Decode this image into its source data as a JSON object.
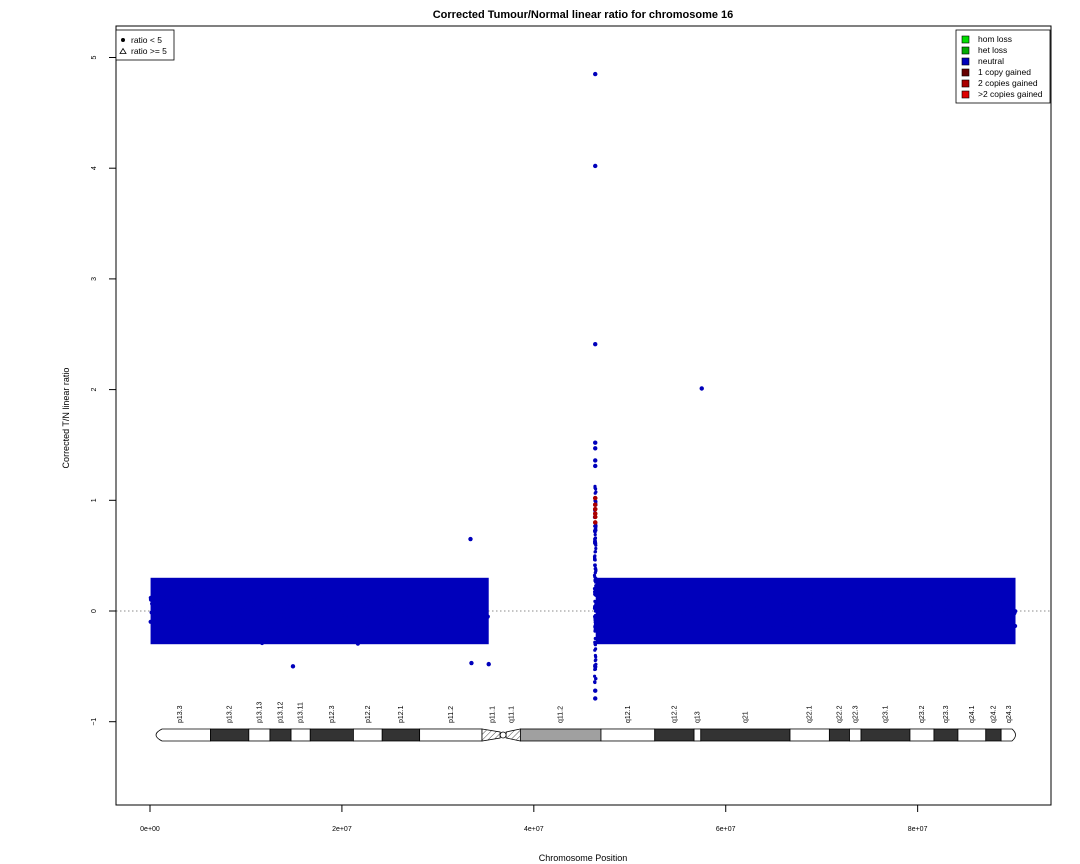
{
  "chart_data": {
    "type": "scatter",
    "title": "Corrected Tumour/Normal linear ratio for chromosome  16",
    "xlabel": "Chromosome Position",
    "ylabel": "Corrected T/N linear ratio",
    "xlim": [
      0,
      90354753
    ],
    "ylim": [
      -1.8,
      5.25
    ],
    "x_ticks": [
      {
        "value": 0,
        "label": "0e+00"
      },
      {
        "value": 20000000,
        "label": "2e+07"
      },
      {
        "value": 40000000,
        "label": "4e+07"
      },
      {
        "value": 60000000,
        "label": "6e+07"
      },
      {
        "value": 80000000,
        "label": "8e+07"
      }
    ],
    "y_ticks": [
      {
        "value": -1,
        "label": "−1"
      },
      {
        "value": 0,
        "label": "0"
      },
      {
        "value": 1,
        "label": "1"
      },
      {
        "value": 2,
        "label": "2"
      },
      {
        "value": 3,
        "label": "3"
      },
      {
        "value": 4,
        "label": "4"
      },
      {
        "value": 5,
        "label": "5"
      }
    ],
    "reference_line": {
      "y": 0,
      "style": "dotted",
      "color": "#666666"
    },
    "series": [
      {
        "name": "neutral",
        "color": "#0000bb",
        "clusters": [
          {
            "x_start": 60000,
            "x_end": 35300000,
            "y_center": 0.0,
            "y_low": -0.45,
            "y_high": 0.58
          },
          {
            "x_start": 46450000,
            "x_end": 90200000,
            "y_center": 0.0,
            "y_low": -0.45,
            "y_high": 0.58
          }
        ],
        "outliers": [
          {
            "x": 46400000,
            "y": 4.85
          },
          {
            "x": 46400000,
            "y": 4.02
          },
          {
            "x": 46400000,
            "y": 2.41
          },
          {
            "x": 57500000,
            "y": 2.01
          },
          {
            "x": 46400000,
            "y": 1.52
          },
          {
            "x": 46400000,
            "y": 1.47
          },
          {
            "x": 46400000,
            "y": 1.36
          },
          {
            "x": 46400000,
            "y": 1.31
          },
          {
            "x": 46400000,
            "y": -0.79
          },
          {
            "x": 46400000,
            "y": -0.72
          },
          {
            "x": 33400000,
            "y": 0.65
          },
          {
            "x": 14900000,
            "y": -0.5
          },
          {
            "x": 35300000,
            "y": -0.48
          },
          {
            "x": 33500000,
            "y": -0.47
          }
        ]
      },
      {
        "name": "2 copies gained",
        "color": "#aa0000",
        "points": [
          {
            "x": 46400000,
            "y": 1.02
          },
          {
            "x": 46400000,
            "y": 0.96
          },
          {
            "x": 46400000,
            "y": 0.92
          },
          {
            "x": 46400000,
            "y": 0.88
          },
          {
            "x": 46400000,
            "y": 0.85
          },
          {
            "x": 46400000,
            "y": 0.8
          }
        ]
      }
    ],
    "legend_shape": {
      "position": "top-left",
      "entries": [
        {
          "label": "ratio < 5",
          "symbol": "filled-circle"
        },
        {
          "label": "ratio >= 5",
          "symbol": "open-triangle"
        }
      ]
    },
    "legend_color": {
      "position": "top-right",
      "entries": [
        {
          "label": "hom loss",
          "color": "#00dd00"
        },
        {
          "label": "het loss",
          "color": "#00aa00"
        },
        {
          "label": "neutral",
          "color": "#0000bb"
        },
        {
          "label": "1 copy gained",
          "color": "#660000"
        },
        {
          "label": "2 copies gained",
          "color": "#aa0000"
        },
        {
          "label": ">2 copies gained",
          "color": "#dd0000"
        }
      ]
    },
    "ideogram": {
      "y_value": -1.12,
      "centromere_x": 36800000,
      "bands": [
        {
          "name": "p13.3",
          "start": 0,
          "end": 6300000,
          "stain": "gneg"
        },
        {
          "name": "p13.2",
          "start": 6300000,
          "end": 10300000,
          "stain": "gpos50"
        },
        {
          "name": "p13.13",
          "start": 10300000,
          "end": 12500000,
          "stain": "gneg"
        },
        {
          "name": "p13.12",
          "start": 12500000,
          "end": 14700000,
          "stain": "gpos50"
        },
        {
          "name": "p13.11",
          "start": 14700000,
          "end": 16700000,
          "stain": "gneg"
        },
        {
          "name": "p12.3",
          "start": 16700000,
          "end": 21200000,
          "stain": "gpos50"
        },
        {
          "name": "p12.2",
          "start": 21200000,
          "end": 24200000,
          "stain": "gneg"
        },
        {
          "name": "p12.1",
          "start": 24200000,
          "end": 28100000,
          "stain": "gpos50"
        },
        {
          "name": "p11.2",
          "start": 28100000,
          "end": 34600000,
          "stain": "gneg"
        },
        {
          "name": "p11.1",
          "start": 34600000,
          "end": 36800000,
          "stain": "acen"
        },
        {
          "name": "q11.1",
          "start": 36800000,
          "end": 38600000,
          "stain": "acen"
        },
        {
          "name": "q11.2",
          "start": 38600000,
          "end": 47000000,
          "stain": "gvar"
        },
        {
          "name": "q12.1",
          "start": 47000000,
          "end": 52600000,
          "stain": "gneg"
        },
        {
          "name": "q12.2",
          "start": 52600000,
          "end": 56700000,
          "stain": "gpos50"
        },
        {
          "name": "q13",
          "start": 56700000,
          "end": 57400000,
          "stain": "gneg"
        },
        {
          "name": "q21",
          "start": 57400000,
          "end": 66700000,
          "stain": "gpos50"
        },
        {
          "name": "q22.1",
          "start": 66700000,
          "end": 70800000,
          "stain": "gneg"
        },
        {
          "name": "q22.2",
          "start": 70800000,
          "end": 72900000,
          "stain": "gpos50"
        },
        {
          "name": "q22.3",
          "start": 72900000,
          "end": 74100000,
          "stain": "gneg"
        },
        {
          "name": "q23.1",
          "start": 74100000,
          "end": 79200000,
          "stain": "gpos75"
        },
        {
          "name": "q23.2",
          "start": 79200000,
          "end": 81700000,
          "stain": "gneg"
        },
        {
          "name": "q23.3",
          "start": 81700000,
          "end": 84200000,
          "stain": "gpos50"
        },
        {
          "name": "q24.1",
          "start": 84200000,
          "end": 87100000,
          "stain": "gneg"
        },
        {
          "name": "q24.2",
          "start": 87100000,
          "end": 88700000,
          "stain": "gpos25"
        },
        {
          "name": "q24.3",
          "start": 88700000,
          "end": 90354753,
          "stain": "gneg"
        }
      ]
    }
  }
}
